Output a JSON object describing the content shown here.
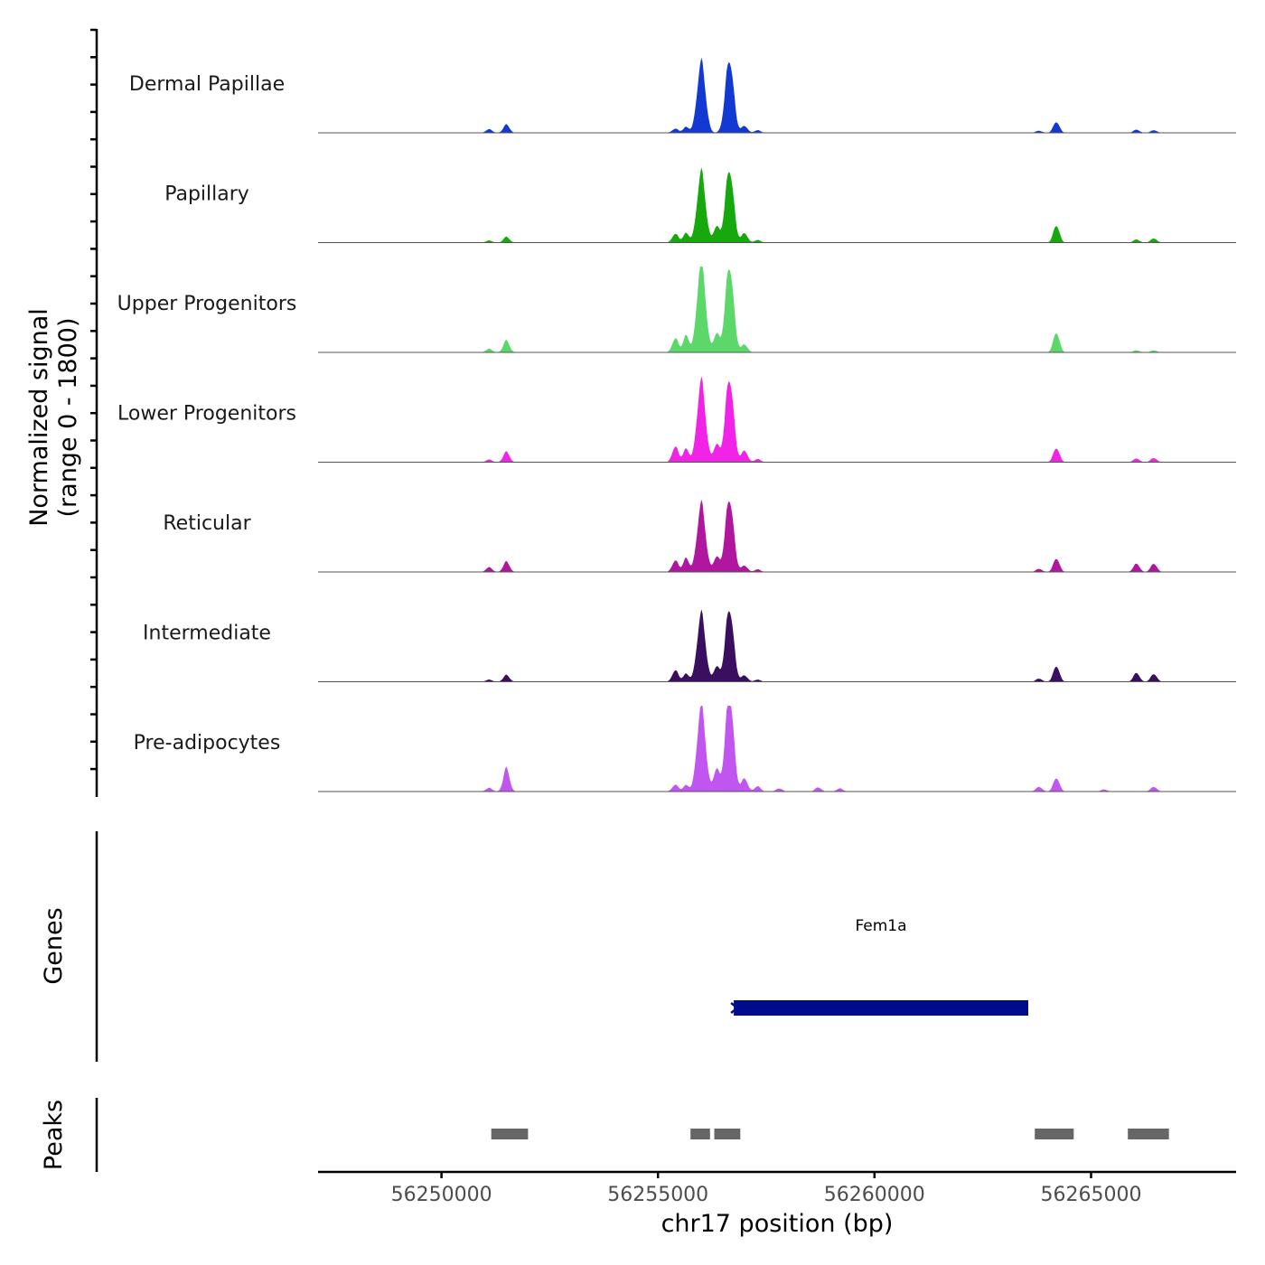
{
  "chart_data": {
    "type": "area",
    "title": "",
    "ylabel_line1": "Normalized signal",
    "ylabel_line2": "(range 0 - 1800)",
    "y_range": [
      0,
      1800
    ],
    "xlabel": "chr17 position (bp)",
    "x_range": [
      56247150,
      56268350
    ],
    "x_ticks": [
      {
        "value": 56250000,
        "label": "56250000"
      },
      {
        "value": 56255000,
        "label": "56255000"
      },
      {
        "value": 56260000,
        "label": "56260000"
      },
      {
        "value": 56265000,
        "label": "56265000"
      }
    ],
    "track_panel_label": "Normalized signal (range 0 - 1800)",
    "tracks": [
      {
        "name": "Dermal Papillae",
        "color": "#1339D3",
        "peaks": [
          [
            56251100,
            70
          ],
          [
            56251500,
            160
          ],
          [
            56255400,
            80
          ],
          [
            56255650,
            110
          ],
          [
            56256000,
            1350
          ],
          [
            56256650,
            1400
          ],
          [
            56257000,
            130
          ],
          [
            56257300,
            50
          ],
          [
            56263800,
            40
          ],
          [
            56264200,
            210
          ],
          [
            56266050,
            60
          ],
          [
            56266450,
            50
          ]
        ]
      },
      {
        "name": "Papillary",
        "color": "#16A80D",
        "peaks": [
          [
            56251100,
            40
          ],
          [
            56251500,
            110
          ],
          [
            56255400,
            170
          ],
          [
            56255650,
            180
          ],
          [
            56256000,
            1350
          ],
          [
            56256350,
            300
          ],
          [
            56256650,
            1400
          ],
          [
            56257000,
            180
          ],
          [
            56257300,
            50
          ],
          [
            56264200,
            330
          ],
          [
            56266050,
            60
          ],
          [
            56266450,
            80
          ]
        ]
      },
      {
        "name": "Upper Progenitors",
        "color": "#5CD86A",
        "peaks": [
          [
            56251100,
            70
          ],
          [
            56251500,
            230
          ],
          [
            56255400,
            270
          ],
          [
            56255650,
            320
          ],
          [
            56256000,
            1780
          ],
          [
            56256350,
            350
          ],
          [
            56256650,
            1650
          ],
          [
            56257000,
            150
          ],
          [
            56264200,
            380
          ],
          [
            56266050,
            40
          ],
          [
            56266450,
            40
          ]
        ]
      },
      {
        "name": "Lower Progenitors",
        "color": "#F023E6",
        "peaks": [
          [
            56251100,
            50
          ],
          [
            56251500,
            200
          ],
          [
            56255400,
            300
          ],
          [
            56255650,
            250
          ],
          [
            56256000,
            1550
          ],
          [
            56256350,
            330
          ],
          [
            56256650,
            1600
          ],
          [
            56257000,
            220
          ],
          [
            56257300,
            60
          ],
          [
            56264200,
            270
          ],
          [
            56266050,
            70
          ],
          [
            56266450,
            80
          ]
        ]
      },
      {
        "name": "Reticular",
        "color": "#B0169E",
        "peaks": [
          [
            56251100,
            90
          ],
          [
            56251500,
            200
          ],
          [
            56255400,
            220
          ],
          [
            56255650,
            260
          ],
          [
            56256000,
            1300
          ],
          [
            56256350,
            280
          ],
          [
            56256650,
            1400
          ],
          [
            56257000,
            120
          ],
          [
            56257300,
            50
          ],
          [
            56263800,
            60
          ],
          [
            56264200,
            260
          ],
          [
            56266050,
            160
          ],
          [
            56266450,
            160
          ]
        ]
      },
      {
        "name": "Intermediate",
        "color": "#3A0F60",
        "peaks": [
          [
            56251100,
            40
          ],
          [
            56251500,
            130
          ],
          [
            56255400,
            220
          ],
          [
            56255650,
            150
          ],
          [
            56256000,
            1300
          ],
          [
            56256350,
            280
          ],
          [
            56256650,
            1400
          ],
          [
            56257000,
            120
          ],
          [
            56257300,
            40
          ],
          [
            56263800,
            60
          ],
          [
            56264200,
            300
          ],
          [
            56266050,
            170
          ],
          [
            56266450,
            150
          ]
        ]
      },
      {
        "name": "Pre-adipocytes",
        "color": "#C055F0",
        "peaks": [
          [
            56251100,
            70
          ],
          [
            56251500,
            450
          ],
          [
            56255400,
            130
          ],
          [
            56255650,
            120
          ],
          [
            56256000,
            1650
          ],
          [
            56256350,
            420
          ],
          [
            56256650,
            1850
          ],
          [
            56257000,
            250
          ],
          [
            56257300,
            100
          ],
          [
            56257800,
            60
          ],
          [
            56258700,
            80
          ],
          [
            56259200,
            60
          ],
          [
            56263800,
            90
          ],
          [
            56264200,
            260
          ],
          [
            56265300,
            40
          ],
          [
            56266450,
            90
          ]
        ]
      }
    ],
    "genes_label": "Genes",
    "genes": [
      {
        "name": "Fem1a",
        "start": 56256750,
        "end": 56263550,
        "strand": "-",
        "color": "#000A8C"
      }
    ],
    "peaks_label": "Peaks",
    "peaks_color": "#666666",
    "peak_regions": [
      [
        56251150,
        56252000
      ],
      [
        56255750,
        56256200
      ],
      [
        56256300,
        56256900
      ],
      [
        56263700,
        56264600
      ],
      [
        56265850,
        56266800
      ]
    ]
  }
}
